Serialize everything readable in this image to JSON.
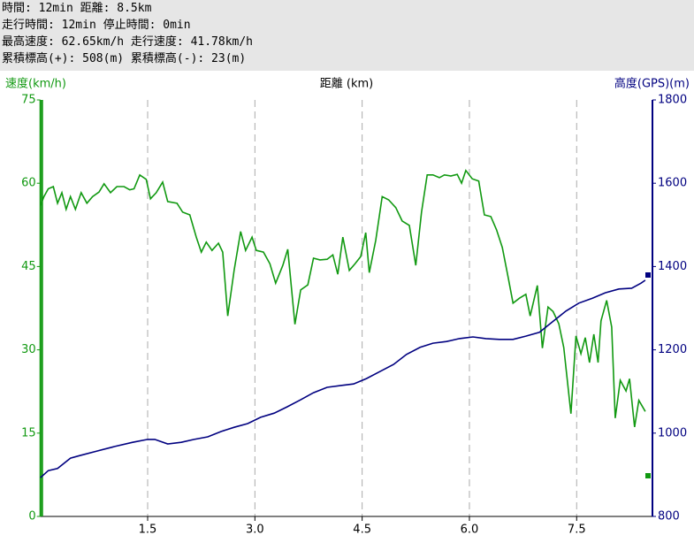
{
  "header": {
    "lines": [
      "時間: 12min 距離: 8.5km",
      "走行時間: 12min 停止時間: 0min",
      "最高速度: 62.65km/h 走行速度: 41.78km/h",
      "累積標高(+): 508(m) 累積標高(-): 23(m)"
    ]
  },
  "chart_data": {
    "type": "line",
    "x_label": "距離 (km)",
    "y_label": "速度(km/h)",
    "y2_label": "高度(GPS)(m)",
    "xlim": [
      0,
      8.56
    ],
    "xticks": [
      1.5,
      {
        "value": 3,
        "label": "3.0"
      },
      4.5,
      {
        "value": 6,
        "label": "6.0"
      },
      7.5
    ],
    "ylim": [
      0,
      75
    ],
    "yticks": [
      0,
      15,
      30,
      45,
      60,
      75
    ],
    "y2lim": [
      800,
      1800
    ],
    "y2ticks": [
      800,
      1000,
      1200,
      1400,
      1600,
      1800
    ],
    "grid": "x",
    "series": [
      {
        "color": "#119911",
        "axis": "y",
        "x": [
          0,
          0.05,
          0.11,
          0.18,
          0.24,
          0.3,
          0.36,
          0.42,
          0.49,
          0.57,
          0.65,
          0.73,
          0.82,
          0.89,
          0.98,
          1.07,
          1.17,
          1.25,
          1.31,
          1.39,
          1.48,
          1.54,
          1.62,
          1.71,
          1.78,
          1.91,
          1.99,
          2.09,
          2.18,
          2.25,
          2.32,
          2.4,
          2.49,
          2.55,
          2.62,
          2.71,
          2.8,
          2.87,
          2.96,
          3.02,
          3.12,
          3.21,
          3.29,
          3.39,
          3.46,
          3.56,
          3.64,
          3.74,
          3.82,
          3.91,
          4.01,
          4.09,
          4.16,
          4.23,
          4.32,
          4.4,
          4.48,
          4.55,
          4.6,
          4.69,
          4.78,
          4.87,
          4.97,
          5.06,
          5.16,
          5.25,
          5.33,
          5.41,
          5.49,
          5.58,
          5.65,
          5.74,
          5.83,
          5.89,
          5.95,
          6.04,
          6.13,
          6.21,
          6.3,
          6.38,
          6.46,
          6.54,
          6.61,
          6.7,
          6.79,
          6.85,
          6.95,
          7.02,
          7.1,
          7.17,
          7.25,
          7.32,
          7.42,
          7.49,
          7.56,
          7.62,
          7.68,
          7.74,
          7.8,
          7.84,
          7.92,
          7.99,
          8.04,
          8.11,
          8.19,
          8.24,
          8.31,
          8.37,
          8.46
        ],
        "values": [
          55.9,
          57.6,
          59,
          59.4,
          56.4,
          58.3,
          55.3,
          57.6,
          55.3,
          58.3,
          56.4,
          57.6,
          58.4,
          59.9,
          58.3,
          59.4,
          59.4,
          58.8,
          59,
          61.5,
          60.7,
          57.2,
          58.3,
          60.2,
          56.7,
          56.4,
          54.8,
          54.3,
          50.3,
          47.6,
          49.4,
          47.9,
          49.2,
          47.6,
          36.1,
          44.4,
          51.3,
          47.9,
          50.3,
          47.9,
          47.6,
          45.5,
          42,
          45.2,
          48.1,
          34.6,
          40.8,
          41.7,
          46.5,
          46.2,
          46.3,
          47.1,
          43.6,
          50.3,
          44.3,
          45.5,
          46.8,
          51.1,
          43.9,
          49.7,
          57.6,
          57,
          55.6,
          53.2,
          52.4,
          45.2,
          54.8,
          61.5,
          61.5,
          61,
          61.5,
          61.3,
          61.6,
          60,
          62.3,
          60.8,
          60.4,
          54.3,
          54,
          51.6,
          48.4,
          43.2,
          38.4,
          39.3,
          40,
          36.1,
          41.6,
          30.3,
          37.7,
          36.9,
          34.7,
          30.4,
          18.5,
          32.5,
          29.3,
          32.2,
          27.7,
          32.8,
          27.7,
          35.2,
          38.9,
          34.1,
          17.7,
          24.5,
          22.6,
          24.8,
          16.1,
          20.9,
          18.9
        ]
      },
      {
        "color": "#000080",
        "axis": "y2",
        "x": [
          0,
          0.11,
          0.24,
          0.42,
          0.55,
          0.79,
          1.04,
          1.29,
          1.5,
          1.6,
          1.78,
          1.97,
          2.15,
          2.34,
          2.53,
          2.71,
          2.9,
          3.08,
          3.27,
          3.45,
          3.64,
          3.82,
          4.01,
          4.19,
          4.38,
          4.56,
          4.75,
          4.94,
          5.12,
          5.31,
          5.49,
          5.68,
          5.86,
          6.05,
          6.23,
          6.42,
          6.61,
          6.79,
          6.98,
          7.16,
          7.35,
          7.53,
          7.72,
          7.9,
          8.09,
          8.27,
          8.4,
          8.46
        ],
        "values": [
          893,
          910,
          915,
          940,
          946,
          957,
          968,
          978,
          985,
          985,
          974,
          978,
          985,
          991,
          1004,
          1014,
          1023,
          1038,
          1048,
          1063,
          1080,
          1097,
          1110,
          1114,
          1118,
          1131,
          1148,
          1165,
          1189,
          1206,
          1216,
          1220,
          1227,
          1231,
          1227,
          1225,
          1225,
          1233,
          1242,
          1267,
          1293,
          1312,
          1324,
          1337,
          1346,
          1348,
          1360,
          1367
        ]
      }
    ]
  }
}
